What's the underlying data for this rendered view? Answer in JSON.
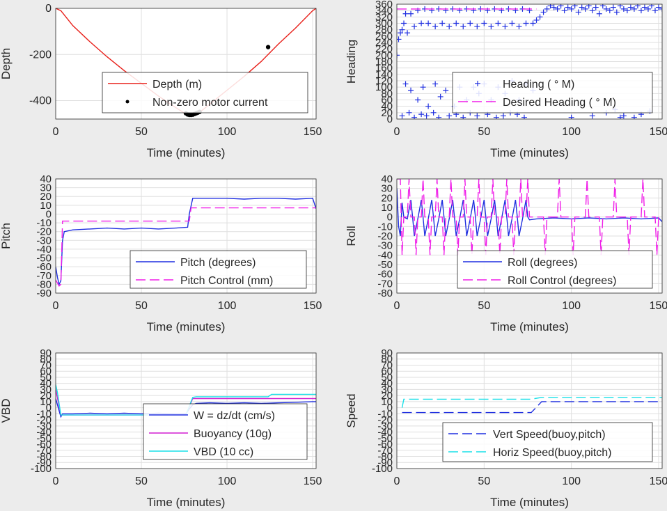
{
  "chart_data": [
    {
      "type": "line",
      "xlabel": "Time (minutes)",
      "ylabel": "Depth",
      "xlim": [
        0,
        152
      ],
      "ylim": [
        -480,
        0
      ],
      "xticks": [
        "0",
        "50",
        "100",
        "150"
      ],
      "yticks": [
        "0",
        "-200",
        "-400"
      ],
      "grid": true,
      "legend_position": "lower-center",
      "series": [
        {
          "name": "Depth (m)",
          "style": "solid",
          "color": "#e8201a",
          "x": [
            0,
            3,
            10,
            20,
            30,
            40,
            50,
            60,
            70,
            76,
            79,
            82,
            85,
            90,
            100,
            110,
            120,
            130,
            140,
            150,
            152
          ],
          "y": [
            0,
            -10,
            -75,
            -145,
            -210,
            -270,
            -325,
            -380,
            -430,
            -458,
            -462,
            -458,
            -445,
            -415,
            -355,
            -295,
            -230,
            -155,
            -85,
            -10,
            0
          ]
        },
        {
          "name": "Non-zero motor current",
          "style": "marker-dot",
          "color": "#000000",
          "x": [
            76,
            77,
            78,
            79,
            80,
            81,
            82,
            83,
            84,
            124
          ],
          "y": [
            -455,
            -460,
            -462,
            -462,
            -461,
            -458,
            -455,
            -452,
            -449,
            -168
          ]
        }
      ]
    },
    {
      "type": "scatter",
      "xlabel": "Time (minutes)",
      "ylabel": "Heading",
      "xlim": [
        0,
        152
      ],
      "ylim": [
        0,
        360
      ],
      "xticks": [
        "0",
        "50",
        "100",
        "150"
      ],
      "yticks": [
        "0",
        "20",
        "40",
        "60",
        "80",
        "100",
        "120",
        "140",
        "160",
        "180",
        "200",
        "220",
        "240",
        "260",
        "280",
        "300",
        "320",
        "340",
        "360"
      ],
      "grid": true,
      "legend_position": "center-right",
      "series": [
        {
          "name": "Heading (   ° M)",
          "style": "marker-plus",
          "color": "#1f2fe0",
          "x": [
            0,
            1,
            2,
            3,
            4,
            5,
            6,
            8,
            10,
            12,
            14,
            16,
            18,
            20,
            22,
            24,
            26,
            28,
            30,
            32,
            34,
            36,
            38,
            40,
            42,
            44,
            46,
            48,
            50,
            52,
            54,
            56,
            58,
            60,
            62,
            64,
            66,
            68,
            70,
            72,
            74,
            76,
            78,
            80,
            82,
            84,
            86,
            88,
            90,
            92,
            94,
            96,
            98,
            100,
            102,
            104,
            106,
            108,
            110,
            112,
            114,
            116,
            118,
            120,
            122,
            124,
            126,
            128,
            130,
            132,
            134,
            136,
            138,
            140,
            142,
            144,
            146,
            148,
            150,
            152,
            5,
            8,
            12,
            15,
            18,
            22,
            25,
            28,
            33,
            36,
            40,
            44,
            47,
            50,
            54,
            58,
            62,
            66,
            70,
            74,
            78,
            120,
            125,
            130,
            136,
            140,
            145,
            3,
            7,
            10,
            14,
            17,
            21,
            24,
            30,
            34,
            38,
            42,
            46,
            52,
            57,
            61,
            65,
            69,
            73,
            100,
            112,
            128
          ],
          "y": [
            200,
            250,
            270,
            280,
            300,
            330,
            270,
            330,
            290,
            340,
            300,
            345,
            300,
            340,
            290,
            345,
            300,
            340,
            290,
            345,
            300,
            340,
            290,
            345,
            300,
            340,
            290,
            345,
            300,
            340,
            290,
            345,
            300,
            340,
            290,
            345,
            300,
            340,
            290,
            345,
            300,
            340,
            300,
            310,
            320,
            335,
            345,
            355,
            350,
            345,
            355,
            340,
            350,
            345,
            355,
            335,
            350,
            345,
            355,
            340,
            350,
            330,
            355,
            345,
            340,
            350,
            335,
            355,
            345,
            340,
            350,
            345,
            355,
            340,
            350,
            345,
            355,
            340,
            350,
            345,
            110,
            90,
            60,
            100,
            40,
            110,
            70,
            90,
            40,
            100,
            60,
            100,
            80,
            110,
            60,
            100,
            80,
            120,
            60,
            110,
            90,
            20,
            30,
            10,
            5,
            15,
            25,
            10,
            20,
            5,
            15,
            10,
            20,
            5,
            10,
            15,
            5,
            20,
            10,
            15,
            5,
            10,
            20,
            15,
            5,
            5,
            10,
            5
          ]
        },
        {
          "name": "Desired Heading (   ° M)",
          "style": "dashed",
          "color": "#f01ee8",
          "x": [
            0,
            80
          ],
          "y": [
            345,
            345
          ]
        }
      ]
    },
    {
      "type": "line",
      "xlabel": "Time (minutes)",
      "ylabel": "Pitch",
      "xlim": [
        0,
        152
      ],
      "ylim": [
        -90,
        40
      ],
      "xticks": [
        "0",
        "50",
        "100",
        "150"
      ],
      "yticks": [
        "-90",
        "-80",
        "-70",
        "-60",
        "-50",
        "-40",
        "-30",
        "-20",
        "-10",
        "0",
        "10",
        "20",
        "30",
        "40"
      ],
      "grid": true,
      "legend_position": "lower-right",
      "series": [
        {
          "name": "Pitch (degrees)",
          "style": "solid",
          "color": "#1f2fe0",
          "x": [
            0,
            1,
            2,
            3,
            4,
            5,
            10,
            20,
            30,
            40,
            50,
            60,
            70,
            77,
            78,
            80,
            90,
            100,
            110,
            120,
            130,
            140,
            150,
            152
          ],
          "y": [
            -60,
            -72,
            -80,
            -76,
            -30,
            -20,
            -18,
            -17,
            -16,
            -17,
            -16,
            -17,
            -16,
            -15,
            0,
            18,
            18,
            18,
            17,
            18,
            18,
            17,
            18,
            6
          ]
        },
        {
          "name": "Pitch Control (mm)",
          "style": "dashed",
          "color": "#f01ee8",
          "x": [
            0,
            2,
            3,
            4,
            78,
            79,
            152
          ],
          "y": [
            -75,
            -82,
            -80,
            -8,
            -8,
            7,
            7
          ]
        }
      ]
    },
    {
      "type": "line",
      "xlabel": "Time (minutes)",
      "ylabel": "Roll",
      "xlim": [
        0,
        152
      ],
      "ylim": [
        -80,
        40
      ],
      "xticks": [
        "0",
        "50",
        "100",
        "150"
      ],
      "yticks": [
        "-80",
        "-70",
        "-60",
        "-50",
        "-40",
        "-30",
        "-20",
        "-10",
        "0",
        "10",
        "20",
        "30",
        "40"
      ],
      "grid": true,
      "legend_position": "lower-right",
      "series": [
        {
          "name": "Roll (degrees)",
          "style": "solid",
          "color": "#1f2fe0",
          "x": [
            0,
            1,
            2,
            3,
            4,
            6,
            8,
            9,
            10,
            12,
            14,
            15,
            16,
            18,
            20,
            21,
            22,
            24,
            26,
            27,
            28,
            30,
            32,
            33,
            34,
            36,
            38,
            39,
            40,
            42,
            44,
            45,
            46,
            48,
            50,
            51,
            52,
            54,
            56,
            57,
            58,
            60,
            62,
            63,
            64,
            66,
            68,
            69,
            70,
            72,
            74,
            75,
            76,
            80,
            90,
            100,
            110,
            120,
            130,
            140,
            150,
            152
          ],
          "y": [
            30,
            -10,
            -20,
            15,
            0,
            -2,
            18,
            0,
            -20,
            -2,
            18,
            0,
            -20,
            -2,
            18,
            0,
            -20,
            -2,
            18,
            0,
            -20,
            -2,
            18,
            0,
            -20,
            -2,
            18,
            0,
            -20,
            -2,
            18,
            0,
            -20,
            -2,
            18,
            0,
            -20,
            -2,
            18,
            0,
            -20,
            -2,
            18,
            0,
            -20,
            -2,
            18,
            0,
            -20,
            -2,
            18,
            0,
            -3,
            -2,
            -1,
            -2,
            -1,
            -2,
            -1,
            -2,
            -1,
            -5
          ]
        },
        {
          "name": "Roll Control (degrees)",
          "style": "dashed",
          "color": "#f01ee8",
          "x": [
            0,
            2,
            3,
            4,
            6,
            7,
            8,
            10,
            11,
            12,
            14,
            15,
            16,
            18,
            19,
            20,
            22,
            23,
            24,
            26,
            27,
            28,
            30,
            31,
            32,
            34,
            35,
            36,
            38,
            39,
            40,
            42,
            43,
            44,
            46,
            47,
            48,
            50,
            51,
            52,
            54,
            55,
            56,
            58,
            59,
            60,
            62,
            63,
            64,
            66,
            67,
            68,
            70,
            71,
            72,
            74,
            75,
            76,
            84,
            85,
            86,
            92,
            93,
            94,
            100,
            101,
            102,
            108,
            109,
            110,
            116,
            117,
            118,
            124,
            125,
            126,
            132,
            133,
            134,
            140,
            141,
            142,
            148,
            149,
            150,
            152
          ],
          "y": [
            40,
            40,
            -40,
            0,
            0,
            40,
            0,
            0,
            -40,
            0,
            0,
            40,
            0,
            0,
            -40,
            0,
            0,
            40,
            0,
            0,
            -40,
            0,
            0,
            40,
            0,
            0,
            -40,
            0,
            0,
            40,
            0,
            0,
            -40,
            0,
            0,
            40,
            0,
            0,
            -40,
            0,
            0,
            40,
            0,
            0,
            -40,
            0,
            0,
            40,
            0,
            0,
            -40,
            0,
            0,
            40,
            0,
            0,
            40,
            0,
            0,
            -40,
            0,
            0,
            40,
            0,
            0,
            -40,
            0,
            0,
            40,
            0,
            0,
            -40,
            0,
            0,
            40,
            0,
            0,
            -40,
            0,
            0,
            40,
            0,
            0,
            -40,
            0,
            0
          ]
        }
      ]
    },
    {
      "type": "line",
      "xlabel": "Time (minutes)",
      "ylabel": "VBD",
      "xlim": [
        0,
        152
      ],
      "ylim": [
        -100,
        90
      ],
      "xticks": [
        "0",
        "50",
        "100",
        "150"
      ],
      "yticks": [
        "-100",
        "-90",
        "-80",
        "-70",
        "-60",
        "-50",
        "-40",
        "-30",
        "-20",
        "-10",
        "0",
        "10",
        "20",
        "30",
        "40",
        "50",
        "60",
        "70",
        "80",
        "90"
      ],
      "grid": true,
      "legend_position": "lower-right",
      "series": [
        {
          "name": "W = dz/dt (cm/s)",
          "style": "solid",
          "color": "#1f2fe0",
          "x": [
            0,
            2,
            3,
            4,
            10,
            20,
            30,
            40,
            50,
            60,
            70,
            76,
            78,
            80,
            82,
            90,
            100,
            110,
            120,
            130,
            140,
            150,
            152
          ],
          "y": [
            15,
            -5,
            -15,
            -10,
            -10,
            -9,
            -10,
            -9,
            -10,
            -9,
            -10,
            -10,
            -2,
            5,
            7,
            8,
            7,
            8,
            7,
            8,
            9,
            10,
            10
          ]
        },
        {
          "name": "Buoyancy (10g)",
          "style": "solid",
          "color": "#d21ed2",
          "x": [
            0,
            3,
            4,
            76,
            80,
            82,
            124,
            126,
            152
          ],
          "y": [
            30,
            -12,
            -12,
            -12,
            15,
            15,
            15,
            15,
            15
          ]
        },
        {
          "name": "VBD (10 cc)",
          "style": "solid",
          "color": "#19e0e8",
          "x": [
            0,
            1,
            3,
            4,
            76,
            80,
            82,
            124,
            126,
            152
          ],
          "y": [
            38,
            25,
            -12,
            -12,
            -12,
            17,
            18,
            18,
            22,
            22
          ]
        }
      ]
    },
    {
      "type": "line",
      "xlabel": "Time (minutes)",
      "ylabel": "Speed",
      "xlim": [
        0,
        152
      ],
      "ylim": [
        -100,
        90
      ],
      "xticks": [
        "0",
        "50",
        "100",
        "150"
      ],
      "yticks": [
        "-100",
        "-90",
        "-80",
        "-70",
        "-60",
        "-50",
        "-40",
        "-30",
        "-20",
        "-10",
        "0",
        "10",
        "20",
        "30",
        "40",
        "50",
        "60",
        "70",
        "80",
        "90"
      ],
      "grid": true,
      "legend_position": "lower-right",
      "series": [
        {
          "name": "Vert Speed(buoy,pitch)",
          "style": "dashed",
          "color": "#1f2fe0",
          "x": [
            3,
            77,
            83,
            152
          ],
          "y": [
            -8,
            -8,
            10,
            10
          ]
        },
        {
          "name": "Horiz Speed(buoy,pitch)",
          "style": "dashed",
          "color": "#19e0e8",
          "x": [
            3,
            4,
            77,
            83,
            152
          ],
          "y": [
            0,
            14,
            14,
            17,
            17
          ]
        }
      ]
    }
  ]
}
